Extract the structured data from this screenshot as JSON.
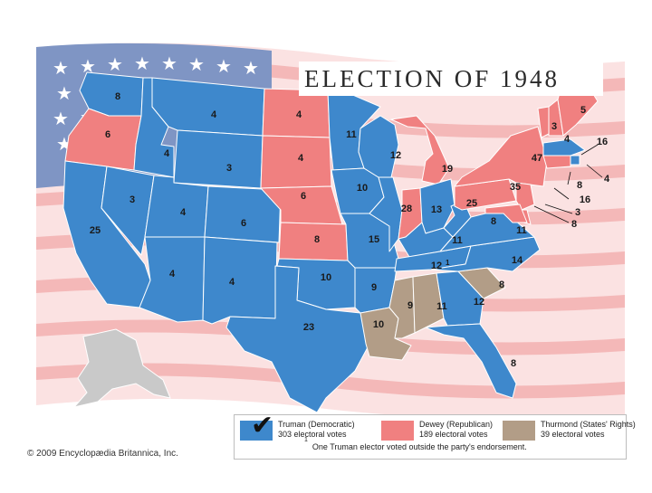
{
  "title": "ELECTION OF 1948",
  "copyright": "© 2009 Encyclopædia Britannica, Inc.",
  "colors": {
    "truman": "#3e88cc",
    "dewey": "#f08080",
    "thurmond": "#b29d87",
    "alaska": "#c8c8c8",
    "flag_blue": "#6e86bb"
  },
  "legend": {
    "truman": {
      "name": "Truman (Democratic)",
      "votes": "303 electoral votes"
    },
    "dewey": {
      "name": "Dewey (Republican)",
      "votes": "189 electoral votes"
    },
    "thurmond": {
      "name": "Thurmond (States' Rights)",
      "votes": "39 electoral votes"
    },
    "note_marker": "1",
    "note": "One Truman elector voted outside the party's endorsement."
  },
  "states": [
    {
      "abbr": "WA",
      "party": "truman",
      "ev": "8"
    },
    {
      "abbr": "OR",
      "party": "dewey",
      "ev": "6"
    },
    {
      "abbr": "CA",
      "party": "truman",
      "ev": "25"
    },
    {
      "abbr": "ID",
      "party": "truman",
      "ev": "4"
    },
    {
      "abbr": "NV",
      "party": "truman",
      "ev": "3"
    },
    {
      "abbr": "MT",
      "party": "truman",
      "ev": "4"
    },
    {
      "abbr": "WY",
      "party": "truman",
      "ev": "3"
    },
    {
      "abbr": "UT",
      "party": "truman",
      "ev": "4"
    },
    {
      "abbr": "CO",
      "party": "truman",
      "ev": "6"
    },
    {
      "abbr": "AZ",
      "party": "truman",
      "ev": "4"
    },
    {
      "abbr": "NM",
      "party": "truman",
      "ev": "4"
    },
    {
      "abbr": "ND",
      "party": "dewey",
      "ev": "4"
    },
    {
      "abbr": "SD",
      "party": "dewey",
      "ev": "4"
    },
    {
      "abbr": "NE",
      "party": "dewey",
      "ev": "6"
    },
    {
      "abbr": "KS",
      "party": "dewey",
      "ev": "8"
    },
    {
      "abbr": "OK",
      "party": "truman",
      "ev": "10"
    },
    {
      "abbr": "TX",
      "party": "truman",
      "ev": "23"
    },
    {
      "abbr": "MN",
      "party": "truman",
      "ev": "11"
    },
    {
      "abbr": "IA",
      "party": "truman",
      "ev": "10"
    },
    {
      "abbr": "MO",
      "party": "truman",
      "ev": "15"
    },
    {
      "abbr": "AR",
      "party": "truman",
      "ev": "9"
    },
    {
      "abbr": "LA",
      "party": "thurmond",
      "ev": "10"
    },
    {
      "abbr": "WI",
      "party": "truman",
      "ev": "12"
    },
    {
      "abbr": "IL",
      "party": "truman",
      "ev": "28"
    },
    {
      "abbr": "MI",
      "party": "dewey",
      "ev": "19"
    },
    {
      "abbr": "IN",
      "party": "dewey",
      "ev": "13"
    },
    {
      "abbr": "OH",
      "party": "truman",
      "ev": "25"
    },
    {
      "abbr": "KY",
      "party": "truman",
      "ev": "11"
    },
    {
      "abbr": "TN",
      "party": "truman",
      "ev": "12"
    },
    {
      "abbr": "MS",
      "party": "thurmond",
      "ev": "9"
    },
    {
      "abbr": "AL",
      "party": "thurmond",
      "ev": "11"
    },
    {
      "abbr": "GA",
      "party": "truman",
      "ev": "12"
    },
    {
      "abbr": "FL",
      "party": "truman",
      "ev": "8"
    },
    {
      "abbr": "SC",
      "party": "thurmond",
      "ev": "8"
    },
    {
      "abbr": "NC",
      "party": "truman",
      "ev": "14"
    },
    {
      "abbr": "VA",
      "party": "truman",
      "ev": "11"
    },
    {
      "abbr": "WV",
      "party": "truman",
      "ev": "8"
    },
    {
      "abbr": "PA",
      "party": "dewey",
      "ev": "35"
    },
    {
      "abbr": "NY",
      "party": "dewey",
      "ev": "47"
    },
    {
      "abbr": "VT",
      "party": "dewey",
      "ev": "3"
    },
    {
      "abbr": "NH",
      "party": "dewey",
      "ev": "4"
    },
    {
      "abbr": "ME",
      "party": "dewey",
      "ev": "5"
    },
    {
      "abbr": "MA",
      "party": "truman",
      "ev": "16"
    },
    {
      "abbr": "RI",
      "party": "truman",
      "ev": "4"
    },
    {
      "abbr": "CT",
      "party": "dewey",
      "ev": "8"
    },
    {
      "abbr": "NJ",
      "party": "dewey",
      "ev": "16"
    },
    {
      "abbr": "DE",
      "party": "dewey",
      "ev": "3"
    },
    {
      "abbr": "MD",
      "party": "dewey",
      "ev": "8"
    }
  ],
  "tennessee_footnote": "1"
}
